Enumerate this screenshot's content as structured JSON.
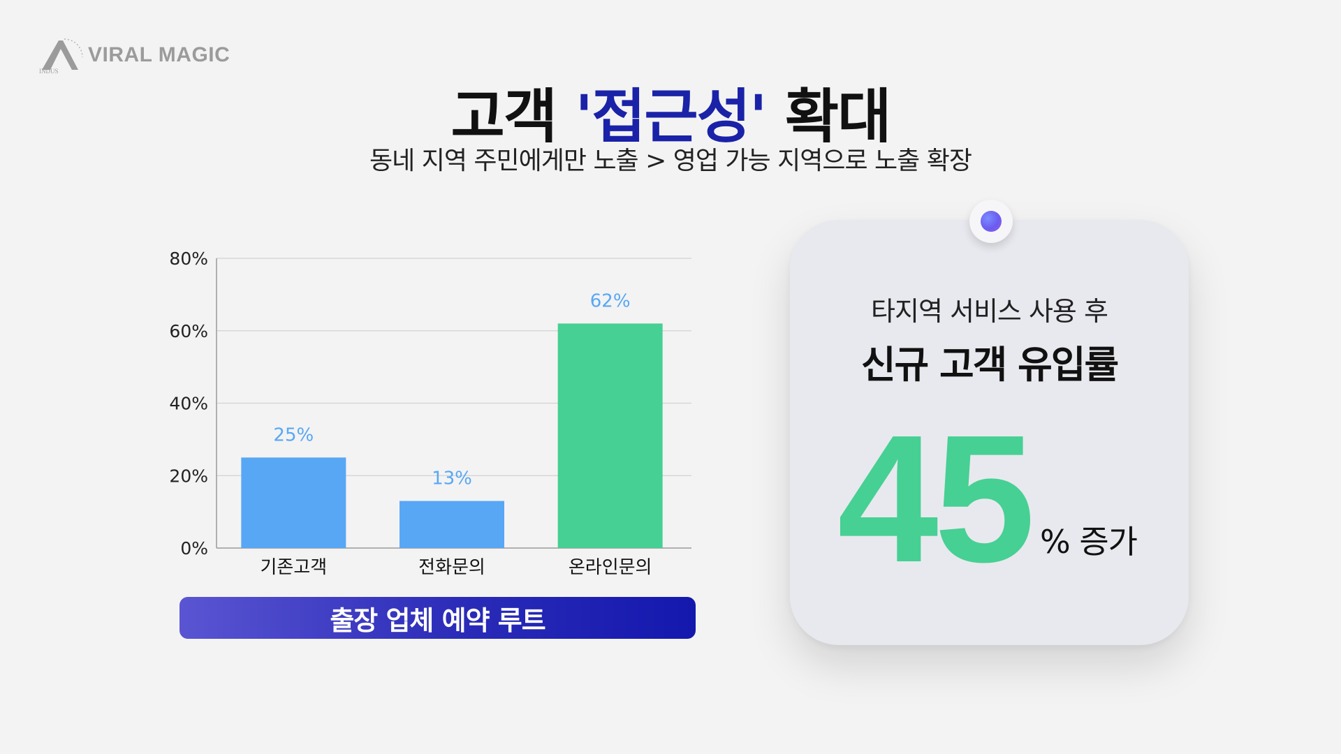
{
  "logo": {
    "text": "VIRAL MAGIC",
    "mark_text": "INDUS"
  },
  "title": {
    "prefix": "고객 ",
    "highlight": "'접근성'",
    "suffix": " 확대"
  },
  "subtitle": "동네 지역 주민에게만 노출 > 영업 가능 지역으로 노출 확장",
  "chart_data": {
    "type": "bar",
    "categories": [
      "기존고객",
      "전화문의",
      "온라인문의"
    ],
    "values": [
      25,
      13,
      62
    ],
    "value_labels": [
      "25%",
      "13%",
      "62%"
    ],
    "ylim": [
      0,
      80
    ],
    "yticks": [
      0,
      20,
      40,
      60,
      80
    ],
    "ytick_labels": [
      "0%",
      "20%",
      "40%",
      "60%",
      "80%"
    ],
    "bar_colors": [
      "#58a7f5",
      "#58a7f5",
      "#46d093"
    ],
    "value_label_color": "#58a7f5",
    "grid": true,
    "caption": "출장 업체 예약 루트"
  },
  "stat_card": {
    "line1": "타지역 서비스 사용 후",
    "line2": "신규 고객 유입률",
    "value": "45",
    "suffix": "% 증가",
    "accent": "#46d093"
  }
}
